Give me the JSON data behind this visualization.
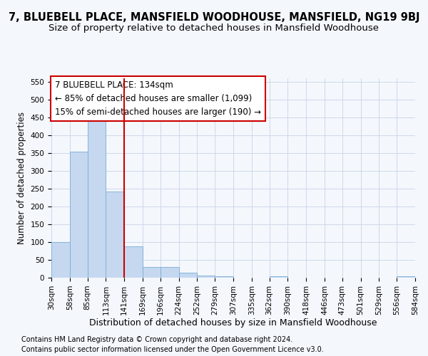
{
  "title": "7, BLUEBELL PLACE, MANSFIELD WOODHOUSE, MANSFIELD, NG19 9BJ",
  "subtitle": "Size of property relative to detached houses in Mansfield Woodhouse",
  "xlabel": "Distribution of detached houses by size in Mansfield Woodhouse",
  "ylabel": "Number of detached properties",
  "footnote1": "Contains HM Land Registry data © Crown copyright and database right 2024.",
  "footnote2": "Contains public sector information licensed under the Open Government Licence v3.0.",
  "bar_color": "#c5d8f0",
  "bar_edge_color": "#7aadd4",
  "vline_color": "#cc0000",
  "vline_x_index": 4,
  "annotation_line1": "7 BLUEBELL PLACE: 134sqm",
  "annotation_line2": "← 85% of detached houses are smaller (1,099)",
  "annotation_line3": "15% of semi-detached houses are larger (190) →",
  "annotation_box_color": "#ffffff",
  "annotation_box_edge": "#cc0000",
  "bin_edges": [
    30,
    58,
    85,
    113,
    141,
    169,
    196,
    224,
    252,
    279,
    307,
    335,
    362,
    390,
    418,
    446,
    473,
    501,
    529,
    556,
    584
  ],
  "bin_labels": [
    "30sqm",
    "58sqm",
    "85sqm",
    "113sqm",
    "141sqm",
    "169sqm",
    "196sqm",
    "224sqm",
    "252sqm",
    "279sqm",
    "307sqm",
    "335sqm",
    "362sqm",
    "390sqm",
    "418sqm",
    "446sqm",
    "473sqm",
    "501sqm",
    "529sqm",
    "556sqm",
    "584sqm"
  ],
  "bar_heights": [
    100,
    355,
    448,
    242,
    88,
    30,
    30,
    14,
    7,
    4,
    0,
    0,
    4,
    0,
    0,
    0,
    0,
    0,
    0,
    4
  ],
  "ylim": [
    0,
    560
  ],
  "yticks": [
    0,
    50,
    100,
    150,
    200,
    250,
    300,
    350,
    400,
    450,
    500,
    550
  ],
  "background_color": "#f4f7fc",
  "plot_bg_color": "#f4f7fc",
  "grid_color": "#c8d4e8",
  "title_fontsize": 10.5,
  "subtitle_fontsize": 9.5,
  "xlabel_fontsize": 9,
  "ylabel_fontsize": 8.5,
  "tick_fontsize": 7.5,
  "annotation_fontsize": 8.5,
  "footnote_fontsize": 7
}
